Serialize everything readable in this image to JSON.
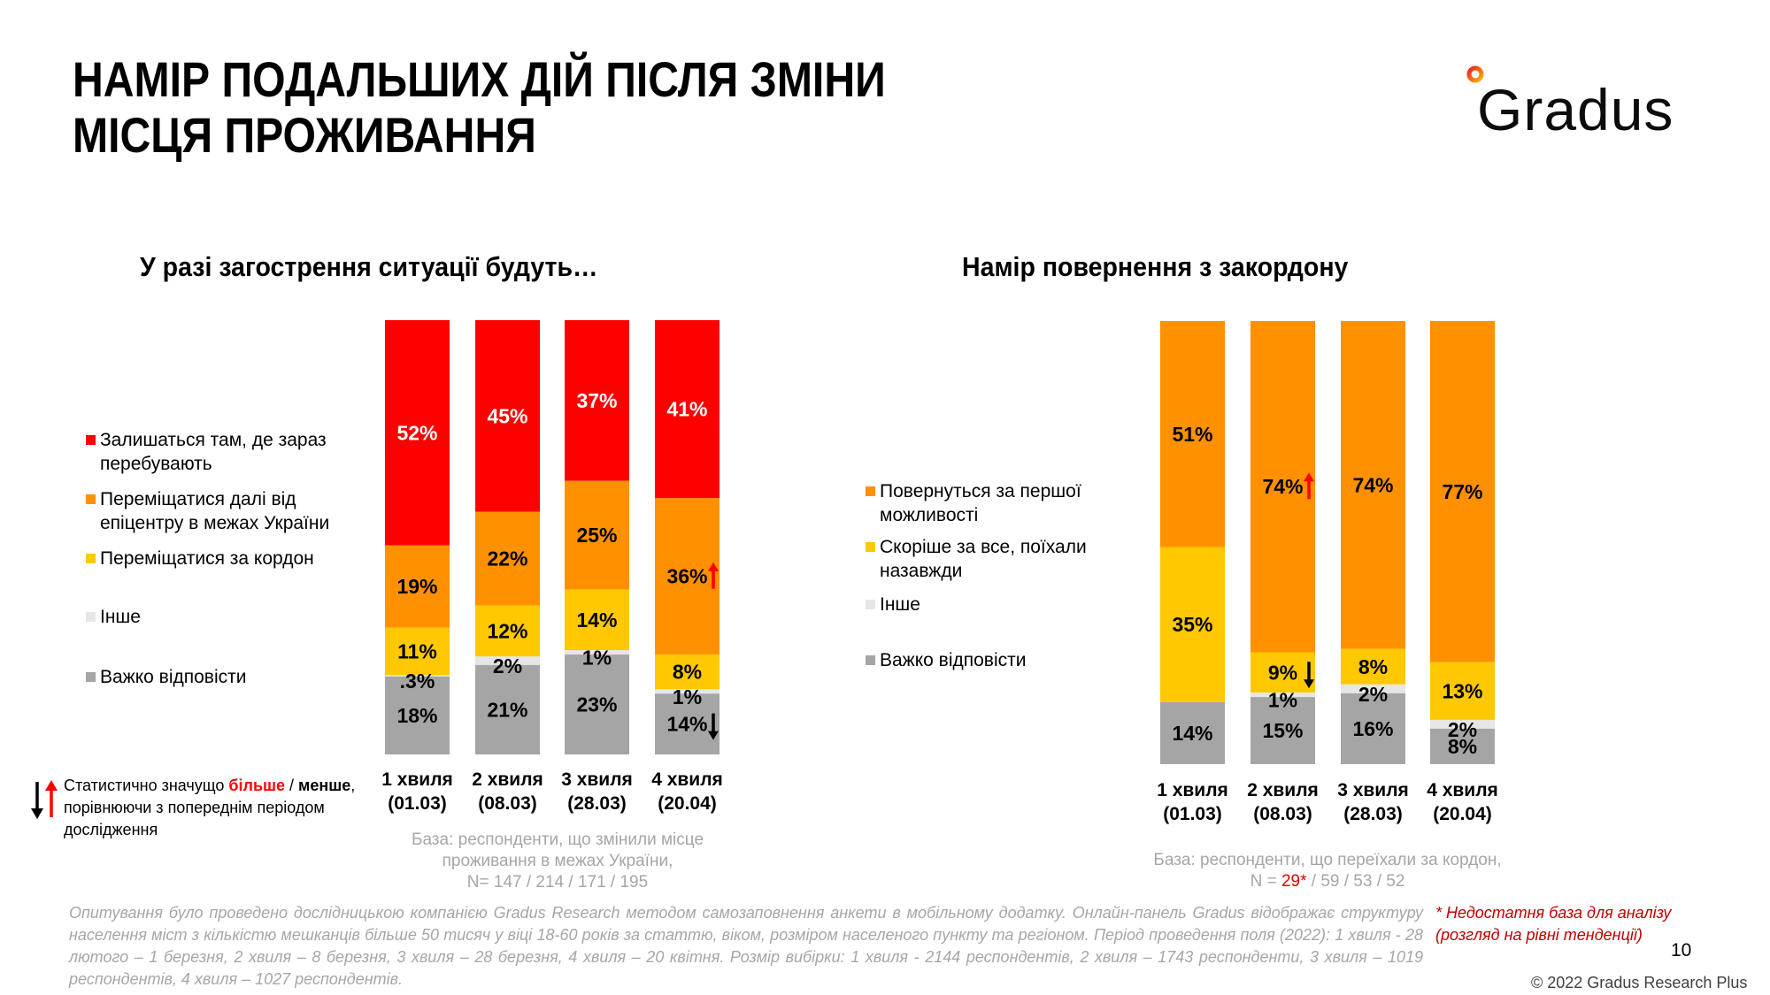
{
  "header": {
    "title_line1": "НАМІР ПОДАЛЬШИХ ДІЙ ПІСЛЯ ЗМІНИ",
    "title_line2": "МІСЦЯ ПРОЖИВАННЯ",
    "logo_text": "Gradus"
  },
  "colors": {
    "red": "#ff0000",
    "orange": "#ff9100",
    "yellow": "#ffc800",
    "light_gray": "#e6e6e6",
    "gray": "#a5a5a5",
    "base_text": "#a6a6a6",
    "warning_text": "#c00000"
  },
  "significance_legend": {
    "part1": "Статистично значущо ",
    "more": "більше",
    "part2": " / ",
    "less": "менше",
    "part3": ", порівнюючи з попереднім періодом дослідження"
  },
  "chart_data": [
    {
      "type": "bar",
      "stacked": true,
      "title": "У разі загострення ситуації будуть…",
      "categories": [
        "1 хвиля (01.03)",
        "2 хвиля (08.03)",
        "3 хвиля (28.03)",
        "4 хвиля (20.04)"
      ],
      "category_lines": [
        [
          "1 хвиля",
          "(01.03)"
        ],
        [
          "2 хвиля",
          "(08.03)"
        ],
        [
          "3 хвиля",
          "(28.03)"
        ],
        [
          "4 хвиля",
          "(20.04)"
        ]
      ],
      "ylim": [
        0,
        100
      ],
      "legend_position": "left",
      "series": [
        {
          "name": "Залишаться там, де зараз перебувають",
          "legend_lines": [
            "Залишаться там, де зараз",
            "перебувають"
          ],
          "color": "#ff0000",
          "label_color": "#ffffff",
          "values": [
            52,
            45,
            37,
            41
          ],
          "labels": [
            "52%",
            "45%",
            "37%",
            "41%"
          ],
          "significance": [
            null,
            null,
            null,
            null
          ]
        },
        {
          "name": "Переміщатися далі від епіцентру в межах України",
          "legend_lines": [
            "Переміщатися далі від",
            "епіцентру в межах України"
          ],
          "color": "#ff9100",
          "label_color": "#000000",
          "values": [
            19,
            22,
            25,
            36
          ],
          "labels": [
            "19%",
            "22%",
            "25%",
            "36%"
          ],
          "significance": [
            null,
            null,
            null,
            "up"
          ]
        },
        {
          "name": "Переміщатися за кордон",
          "legend_lines": [
            "Переміщатися за кордон"
          ],
          "color": "#ffc800",
          "label_color": "#000000",
          "values": [
            11,
            12,
            14,
            8
          ],
          "labels": [
            "11%",
            "12%",
            "14%",
            "8%"
          ],
          "significance": [
            null,
            null,
            null,
            null
          ]
        },
        {
          "name": "Інше",
          "legend_lines": [
            "Інше"
          ],
          "color": "#e6e6e6",
          "label_color": "#000000",
          "values": [
            0.3,
            2,
            1,
            1
          ],
          "labels": [
            ".3%",
            "2%",
            "1%",
            "1%"
          ],
          "significance": [
            null,
            null,
            null,
            null
          ]
        },
        {
          "name": "Важко відповісти",
          "legend_lines": [
            "Важко відповісти"
          ],
          "color": "#a5a5a5",
          "label_color": "#000000",
          "values": [
            18,
            21,
            23,
            14
          ],
          "labels": [
            "18%",
            "21%",
            "23%",
            "14%"
          ],
          "significance": [
            null,
            null,
            null,
            "down"
          ]
        }
      ],
      "base_note": [
        "База: респонденти, що змінили місце",
        "проживання в межах України,",
        "N= 147 / 214 / 171 / 195"
      ]
    },
    {
      "type": "bar",
      "stacked": true,
      "title": "Намір повернення з закордону",
      "categories": [
        "1 хвиля (01.03)",
        "2 хвиля (08.03)",
        "3 хвиля (28.03)",
        "4 хвиля (20.04)"
      ],
      "category_lines": [
        [
          "1 хвиля",
          "(01.03)"
        ],
        [
          "2 хвиля",
          "(08.03)"
        ],
        [
          "3 хвиля",
          "(28.03)"
        ],
        [
          "4 хвиля",
          "(20.04)"
        ]
      ],
      "ylim": [
        0,
        100
      ],
      "legend_position": "left",
      "series": [
        {
          "name": "Повернуться за першої можливості",
          "legend_lines": [
            "Повернуться за першої",
            "можливості"
          ],
          "color": "#ff9100",
          "label_color": "#000000",
          "values": [
            51,
            74,
            74,
            77
          ],
          "labels": [
            "51%",
            "74%",
            "74%",
            "77%"
          ],
          "significance": [
            null,
            "up",
            null,
            null
          ]
        },
        {
          "name": "Скоріше за все, поїхали назавжди",
          "legend_lines": [
            "Скоріше за все, поїхали",
            "назавжди"
          ],
          "color": "#ffc800",
          "label_color": "#000000",
          "values": [
            35,
            9,
            8,
            13
          ],
          "labels": [
            "35%",
            "9%",
            "8%",
            "13%"
          ],
          "significance": [
            null,
            "down",
            null,
            null
          ]
        },
        {
          "name": "Інше",
          "legend_lines": [
            "Інше"
          ],
          "color": "#e6e6e6",
          "label_color": "#000000",
          "values": [
            0,
            1,
            2,
            2
          ],
          "labels": [
            "",
            "1%",
            "2%",
            "2%"
          ],
          "significance": [
            null,
            null,
            null,
            null
          ]
        },
        {
          "name": "Важко відповісти",
          "legend_lines": [
            "Важко відповісти"
          ],
          "color": "#a5a5a5",
          "label_color": "#000000",
          "values": [
            14,
            15,
            16,
            8
          ],
          "labels": [
            "14%",
            "15%",
            "16%",
            "8%"
          ],
          "significance": [
            null,
            null,
            null,
            null
          ]
        }
      ],
      "base_note_line1": "База:  респонденти, що переїхали за кордон,",
      "base_note_n_prefix": "N = ",
      "base_note_n_flagged": "29*",
      "base_note_n_rest": " / 59 / 53 / 52"
    }
  ],
  "footer": {
    "methodology": "Опитування було проведено дослідницькою компанією Gradus Research методом самозаповнення анкети в мобільному додатку. Онлайн-панель Gradus відображає структуру населення міст з кількістю мешканців більше 50 тисяч у віці 18-60 років за статтю, віком, розміром населеного пункту та регіоном. Період проведення поля (2022): 1 хвиля - 28 лютого – 1 березня, 2 хвиля – 8 березня, 3 хвиля – 28 березня, 4 хвиля – 20 квітня. Розмір вибірки: 1 хвиля - 2144 респондентів, 2 хвиля – 1743 респонденти, 3 хвиля – 1019 респондентів, 4 хвиля – 1027 респондентів.",
    "insufficient_line1": "* Недостатня база для аналізу",
    "insufficient_line2": "(розгляд на рівні тенденції)",
    "page_number": "10",
    "copyright": "© 2022 Gradus Research Plus"
  }
}
